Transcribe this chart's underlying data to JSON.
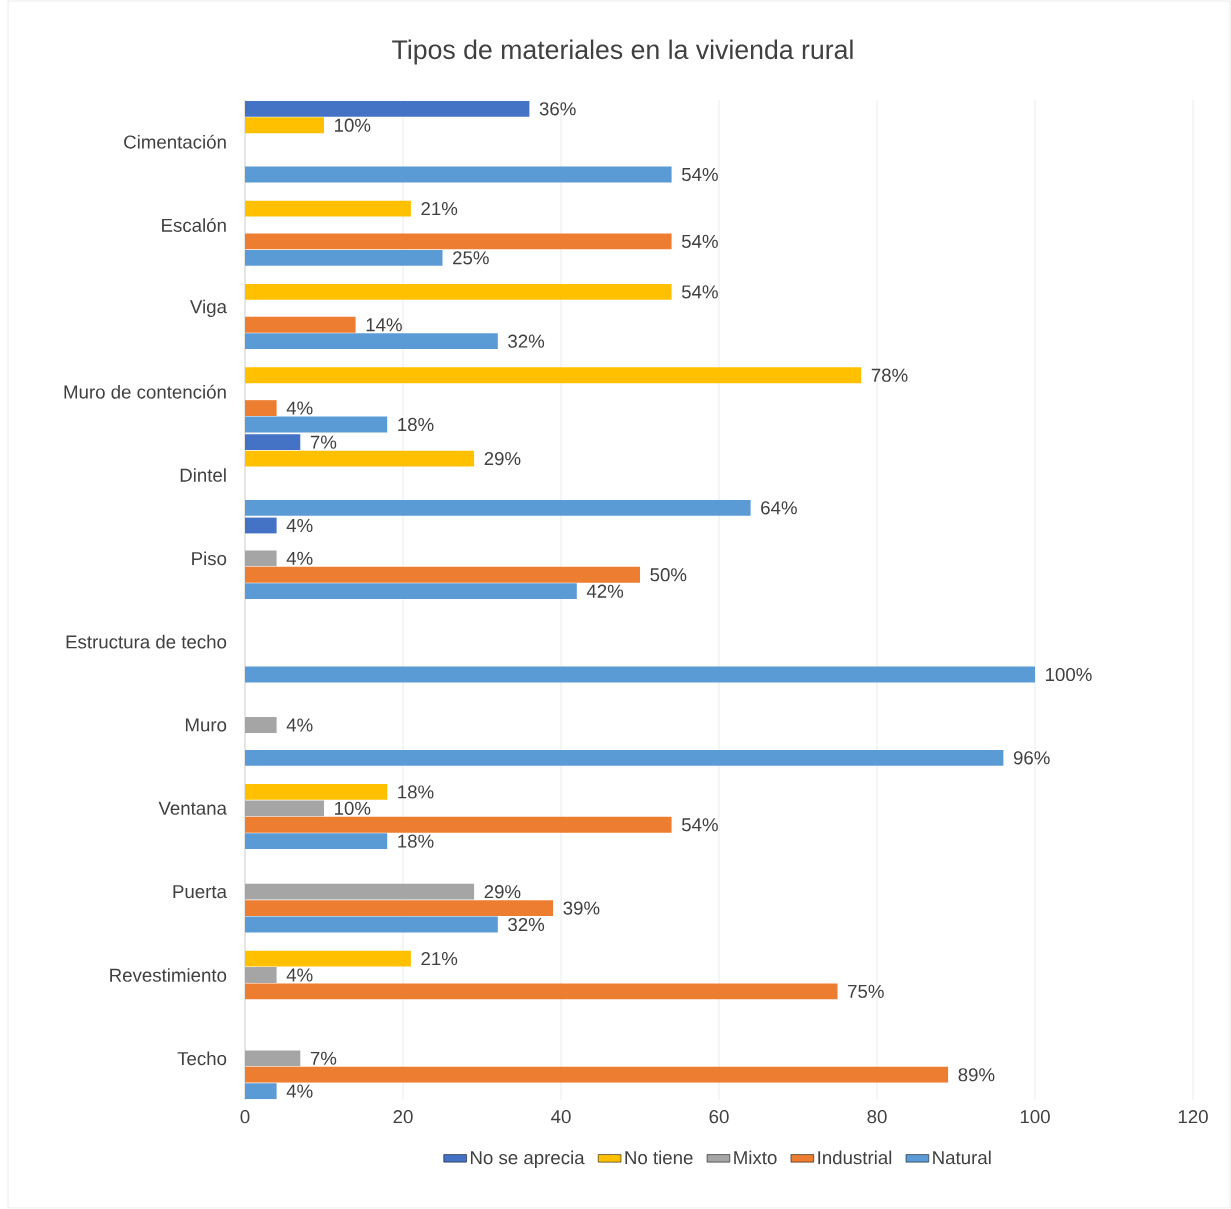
{
  "chart_data": {
    "type": "bar",
    "orientation": "horizontal",
    "title": "Tipos de materiales en la vivienda rural",
    "categories": [
      "Cimentación",
      "Escalón",
      "Viga",
      "Muro de contención",
      "Dintel",
      "Piso",
      "Estructura de techo",
      "Muro",
      "Ventana",
      "Puerta",
      "Revestimiento",
      "Techo"
    ],
    "series": [
      {
        "name": "No se aprecia",
        "color": "#4472c4",
        "values": [
          36,
          null,
          null,
          null,
          7,
          4,
          null,
          null,
          null,
          null,
          null,
          null
        ],
        "value_labels": [
          "36%",
          null,
          null,
          null,
          "7%",
          "4%",
          null,
          null,
          null,
          null,
          null,
          null
        ]
      },
      {
        "name": "No tiene",
        "color": "#ffc000",
        "values": [
          10,
          21,
          54,
          78,
          29,
          null,
          null,
          null,
          18,
          null,
          21,
          null
        ],
        "value_labels": [
          "10%",
          "21%",
          "54%",
          "78%",
          "29%",
          null,
          null,
          null,
          "18%",
          null,
          "21%",
          null
        ]
      },
      {
        "name": "Mixto",
        "color": "#a5a5a5",
        "values": [
          null,
          null,
          null,
          null,
          null,
          4,
          null,
          4,
          10,
          29,
          4,
          7
        ],
        "value_labels": [
          null,
          null,
          null,
          null,
          null,
          "4%",
          null,
          "4%",
          "10%",
          "29%",
          "4%",
          "7%"
        ]
      },
      {
        "name": "Industrial",
        "color": "#ed7d31",
        "values": [
          null,
          54,
          14,
          4,
          null,
          50,
          null,
          null,
          54,
          39,
          75,
          89
        ],
        "value_labels": [
          null,
          "54%",
          "14%",
          "4%",
          null,
          "50%",
          null,
          null,
          "54%",
          "39%",
          "75%",
          "89%"
        ]
      },
      {
        "name": "Natural",
        "color": "#5b9bd5",
        "values": [
          54,
          25,
          32,
          18,
          64,
          42,
          100,
          96,
          18,
          32,
          null,
          4
        ],
        "value_labels": [
          "54%",
          "25%",
          "32%",
          "18%",
          "64%",
          "42%",
          "100%",
          "96%",
          "18%",
          "32%",
          null,
          "4%"
        ]
      }
    ],
    "xlim": [
      0,
      120
    ],
    "xticks": [
      0,
      20,
      40,
      60,
      80,
      100,
      120
    ],
    "grid": "x",
    "legend": "bottom"
  }
}
